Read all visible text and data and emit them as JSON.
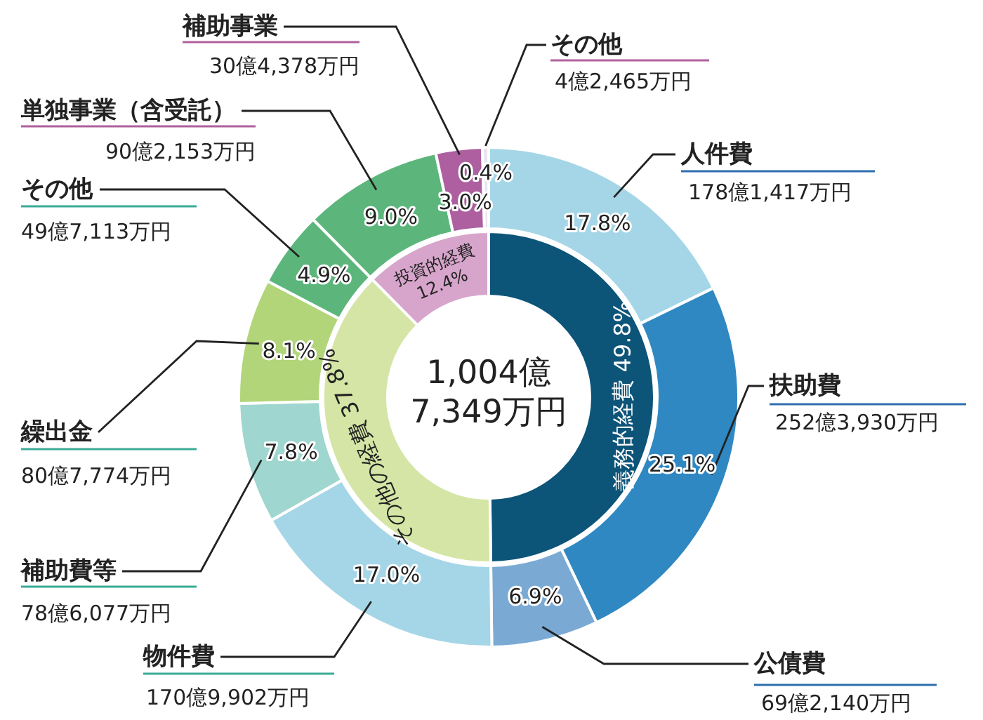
{
  "chart_data": [
    {
      "type": "donut",
      "categories": [
        "人件費",
        "扶助費",
        "公債費",
        "物件費",
        "補助費等",
        "繰出金",
        "その他",
        "単独事業（含受託）",
        "補助事業",
        "その他"
      ],
      "values": [
        17.8,
        25.1,
        6.9,
        17.0,
        7.8,
        8.1,
        4.9,
        9.0,
        3.0,
        0.4
      ],
      "value_labels": [
        "17.8%",
        "25.1%",
        "6.9%",
        "17.0%",
        "7.8%",
        "8.1%",
        "4.9%",
        "9.0%",
        "3.0%",
        "0.4%"
      ],
      "colors": [
        "#a5d6e7",
        "#2f88c2",
        "#7aaad4",
        "#a5d6e7",
        "#9fd6cf",
        "#b2d57a",
        "#5cb67c",
        "#5cb67c",
        "#ad5f9f",
        "#e9e4ee"
      ],
      "annotations": [
        "178億1,417万円",
        "252億3,930万円",
        "69億2,140万円",
        "170億9,902万円",
        "78億6,077万円",
        "80億7,774万円",
        "49億7,113万円",
        "90億2,153万円",
        "30億4,378万円",
        "4億2,465万円"
      ]
    },
    {
      "type": "donut",
      "categories": [
        "義務的経費",
        "その他の経費",
        "投資的経費"
      ],
      "values": [
        49.8,
        37.8,
        12.4
      ],
      "value_labels": [
        "49.8%",
        "37.8%",
        "12.4%"
      ],
      "colors": [
        "#0d5479",
        "#d5e5a6",
        "#d7a5cb"
      ],
      "annotations": [
        "1,004億\n7,349万円"
      ]
    }
  ]
}
